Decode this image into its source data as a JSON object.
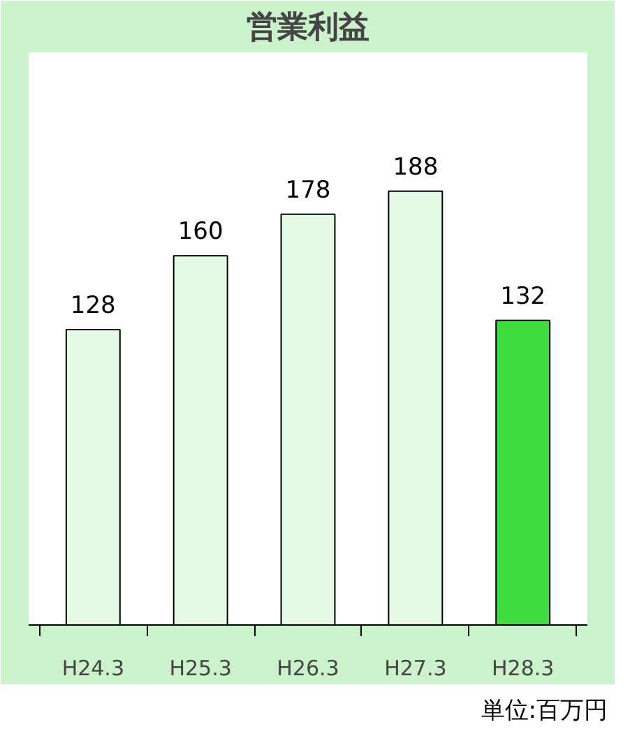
{
  "chart_data": {
    "type": "bar",
    "title": "営業利益",
    "categories": [
      "H24.3",
      "H25.3",
      "H26.3",
      "H27.3",
      "H28.3"
    ],
    "values": [
      128,
      160,
      178,
      188,
      132
    ],
    "colors": [
      "#e4fae4",
      "#e4fae4",
      "#e4fae4",
      "#e4fae4",
      "#3fdc3f"
    ],
    "data_labels": true,
    "grid": false,
    "annotations": [
      "単位:百万円"
    ]
  }
}
